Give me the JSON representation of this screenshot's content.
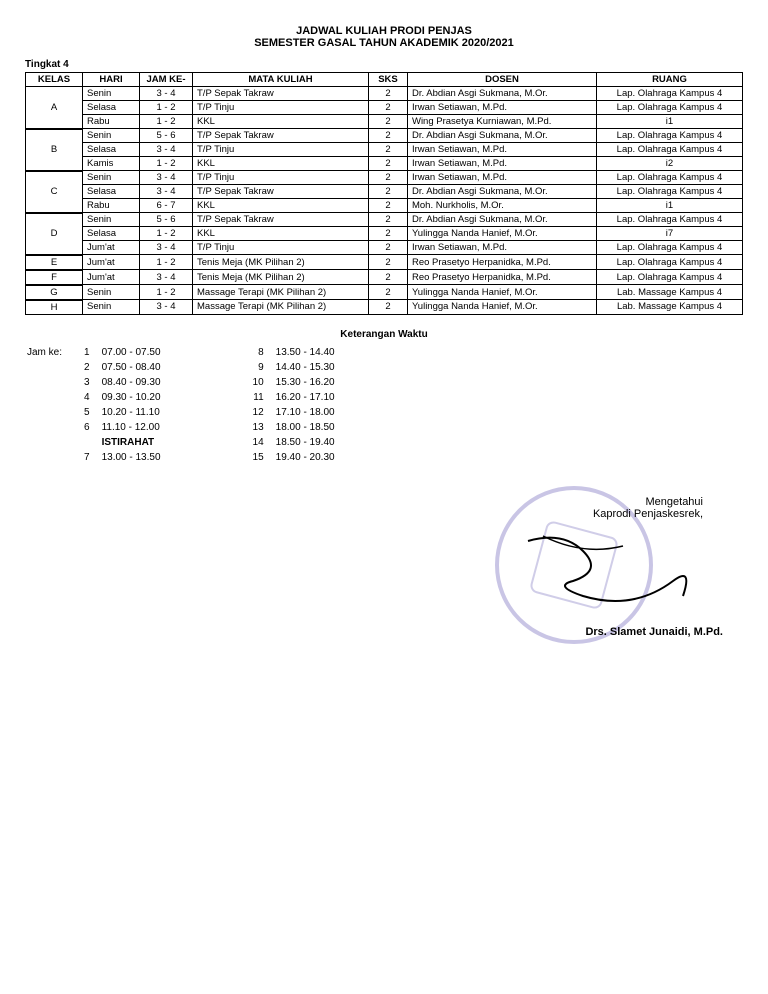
{
  "header": {
    "title": "JADWAL KULIAH PRODI PENJAS",
    "subtitle": "SEMESTER GASAL TAHUN AKADEMIK 2020/2021",
    "level": "Tingkat 4"
  },
  "columns": {
    "kelas": "KELAS",
    "hari": "HARI",
    "jam": "JAM KE-",
    "mk": "MATA KULIAH",
    "sks": "SKS",
    "dosen": "DOSEN",
    "ruang": "RUANG"
  },
  "rows": [
    {
      "kelas": "A",
      "span": 3,
      "hari": "Senin",
      "jam": "3 - 4",
      "mk": "T/P Sepak Takraw",
      "sks": "2",
      "dosen": "Dr. Abdian Asgi Sukmana, M.Or.",
      "ruang": "Lap. Olahraga Kampus 4",
      "sep": false
    },
    {
      "hari": "Selasa",
      "jam": "1 - 2",
      "mk": "T/P Tinju",
      "sks": "2",
      "dosen": "Irwan Setiawan, M.Pd.",
      "ruang": "Lap. Olahraga Kampus 4",
      "sep": false
    },
    {
      "hari": "Rabu",
      "jam": "1 - 2",
      "mk": "KKL",
      "sks": "2",
      "dosen": "Wing Prasetya Kurniawan, M.Pd.",
      "ruang": "i1",
      "sep": false
    },
    {
      "kelas": "B",
      "span": 3,
      "hari": "Senin",
      "jam": "5 - 6",
      "mk": "T/P Sepak Takraw",
      "sks": "2",
      "dosen": "Dr. Abdian Asgi Sukmana, M.Or.",
      "ruang": "Lap. Olahraga Kampus 4",
      "sep": true
    },
    {
      "hari": "Selasa",
      "jam": "3 - 4",
      "mk": "T/P Tinju",
      "sks": "2",
      "dosen": "Irwan Setiawan, M.Pd.",
      "ruang": "Lap. Olahraga Kampus 4",
      "sep": false
    },
    {
      "hari": "Kamis",
      "jam": "1 - 2",
      "mk": "KKL",
      "sks": "2",
      "dosen": "Irwan Setiawan, M.Pd.",
      "ruang": "i2",
      "sep": false
    },
    {
      "kelas": "C",
      "span": 3,
      "hari": "Senin",
      "jam": "3 - 4",
      "mk": "T/P Tinju",
      "sks": "2",
      "dosen": "Irwan Setiawan, M.Pd.",
      "ruang": "Lap. Olahraga Kampus 4",
      "sep": true
    },
    {
      "hari": "Selasa",
      "jam": "3 - 4",
      "mk": "T/P Sepak Takraw",
      "sks": "2",
      "dosen": "Dr. Abdian Asgi Sukmana, M.Or.",
      "ruang": "Lap. Olahraga Kampus 4",
      "sep": false
    },
    {
      "hari": "Rabu",
      "jam": "6 - 7",
      "mk": "KKL",
      "sks": "2",
      "dosen": "Moh. Nurkholis, M.Or.",
      "ruang": "i1",
      "sep": false
    },
    {
      "kelas": "D",
      "span": 3,
      "hari": "Senin",
      "jam": "5 - 6",
      "mk": "T/P Sepak Takraw",
      "sks": "2",
      "dosen": "Dr. Abdian Asgi Sukmana, M.Or.",
      "ruang": "Lap. Olahraga Kampus 4",
      "sep": true
    },
    {
      "hari": "Selasa",
      "jam": "1 - 2",
      "mk": "KKL",
      "sks": "2",
      "dosen": "Yulingga Nanda Hanief, M.Or.",
      "ruang": "i7",
      "sep": false
    },
    {
      "hari": "Jum'at",
      "jam": "3 - 4",
      "mk": "T/P Tinju",
      "sks": "2",
      "dosen": "Irwan Setiawan, M.Pd.",
      "ruang": "Lap. Olahraga Kampus 4",
      "sep": false
    },
    {
      "kelas": "E",
      "span": 1,
      "hari": "Jum'at",
      "jam": "1 - 2",
      "mk": "Tenis Meja (MK Pilihan 2)",
      "sks": "2",
      "dosen": "Reo Prasetyo Herpanidka, M.Pd.",
      "ruang": "Lap. Olahraga Kampus 4",
      "sep": true
    },
    {
      "kelas": "F",
      "span": 1,
      "hari": "Jum'at",
      "jam": "3 - 4",
      "mk": "Tenis Meja (MK Pilihan 2)",
      "sks": "2",
      "dosen": "Reo Prasetyo Herpanidka, M.Pd.",
      "ruang": "Lap. Olahraga Kampus 4",
      "sep": true
    },
    {
      "kelas": "G",
      "span": 1,
      "hari": "Senin",
      "jam": "1 - 2",
      "mk": "Massage Terapi (MK Pilihan 2)",
      "sks": "2",
      "dosen": "Yulingga Nanda Hanief, M.Or.",
      "ruang": "Lab. Massage Kampus 4",
      "sep": true
    },
    {
      "kelas": "H",
      "span": 1,
      "hari": "Senin",
      "jam": "3 - 4",
      "mk": "Massage Terapi (MK Pilihan 2)",
      "sks": "2",
      "dosen": "Yulingga Nanda Hanief, M.Or.",
      "ruang": "Lab. Massage Kampus 4",
      "sep": true
    }
  ],
  "timeKey": {
    "title": "Keterangan Waktu",
    "label": "Jam ke:",
    "left": [
      {
        "n": "1",
        "t": "07.00 - 07.50"
      },
      {
        "n": "2",
        "t": "07.50 - 08.40"
      },
      {
        "n": "3",
        "t": "08.40 - 09.30"
      },
      {
        "n": "4",
        "t": "09.30 - 10.20"
      },
      {
        "n": "5",
        "t": "10.20 - 11.10"
      },
      {
        "n": "6",
        "t": "11.10 - 12.00"
      },
      {
        "n": "",
        "t": "ISTIRAHAT",
        "bold": true
      },
      {
        "n": "7",
        "t": "13.00 - 13.50"
      }
    ],
    "right": [
      {
        "n": "8",
        "t": "13.50 - 14.40"
      },
      {
        "n": "9",
        "t": "14.40 - 15.30"
      },
      {
        "n": "10",
        "t": "15.30 - 16.20"
      },
      {
        "n": "11",
        "t": "16.20 - 17.10"
      },
      {
        "n": "12",
        "t": "17.10 - 18.00"
      },
      {
        "n": "13",
        "t": "18.00 - 18.50"
      },
      {
        "n": "14",
        "t": "18.50 - 19.40"
      },
      {
        "n": "15",
        "t": "19.40 - 20.30"
      }
    ]
  },
  "signature": {
    "line1": "Mengetahui",
    "line2": "Kaprodi Penjaskesrek,",
    "name": "Drs. Slamet Junaidi, M.Pd."
  }
}
